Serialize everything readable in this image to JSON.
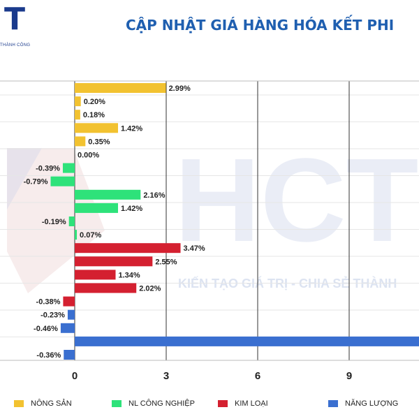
{
  "header": {
    "logo_letter": "T",
    "logo_sub": "THÀNH CÔNG",
    "title": "CẬP NHẬT GIÁ HÀNG HÓA KẾT PHI"
  },
  "watermark": {
    "brand": "HCT",
    "slogan": "KIẾN TẠO GIÁ TRỊ - CHIA SẺ THÀNH"
  },
  "colors": {
    "nong_san": "#f2c230",
    "nl_cong_nghiep": "#2ee27a",
    "kim_loai": "#d42030",
    "nang_luong": "#3a6fd0",
    "grid": "#333333",
    "title": "#1f5fb0"
  },
  "legend": [
    {
      "label": "NÔNG SẢN",
      "color": "#f2c230"
    },
    {
      "label": "NL CÔNG NGHIỆP",
      "color": "#2ee27a"
    },
    {
      "label": "KIM LOẠI",
      "color": "#d42030"
    },
    {
      "label": "NĂNG LƯỢNG",
      "color": "#3a6fd0"
    }
  ],
  "chart_data": {
    "type": "bar",
    "orientation": "horizontal",
    "x_ticks": [
      "0",
      "3",
      "6",
      "9"
    ],
    "xlim": [
      -2.5,
      11.3
    ],
    "series": [
      {
        "name": "NÔNG SẢN",
        "color": "#f2c230",
        "values": [
          2.99,
          0.2,
          0.18,
          1.42,
          0.35,
          0.0
        ],
        "labels": [
          "2.99%",
          "0.20%",
          "0.18%",
          "1.42%",
          "0.35%",
          "0.00%"
        ]
      },
      {
        "name": "NL CÔNG NGHIỆP",
        "color": "#2ee27a",
        "values": [
          -0.39,
          -0.79,
          2.16,
          1.42,
          -0.19,
          0.07
        ],
        "labels": [
          "-0.39%",
          "-0.79%",
          "2.16%",
          "1.42%",
          "-0.19%",
          "0.07%"
        ]
      },
      {
        "name": "KIM LOẠI",
        "color": "#d42030",
        "values": [
          3.47,
          2.55,
          1.34,
          2.02,
          -0.38
        ],
        "labels": [
          "3.47%",
          "2.55%",
          "1.34%",
          "2.02%",
          "-0.38%"
        ]
      },
      {
        "name": "NĂNG LƯỢNG",
        "color": "#3a6fd0",
        "values": [
          -0.23,
          -0.46,
          11.3,
          -0.36
        ],
        "labels": [
          "-0.23%",
          "-0.46%",
          "",
          "-0.36%"
        ]
      }
    ],
    "grid": true
  }
}
